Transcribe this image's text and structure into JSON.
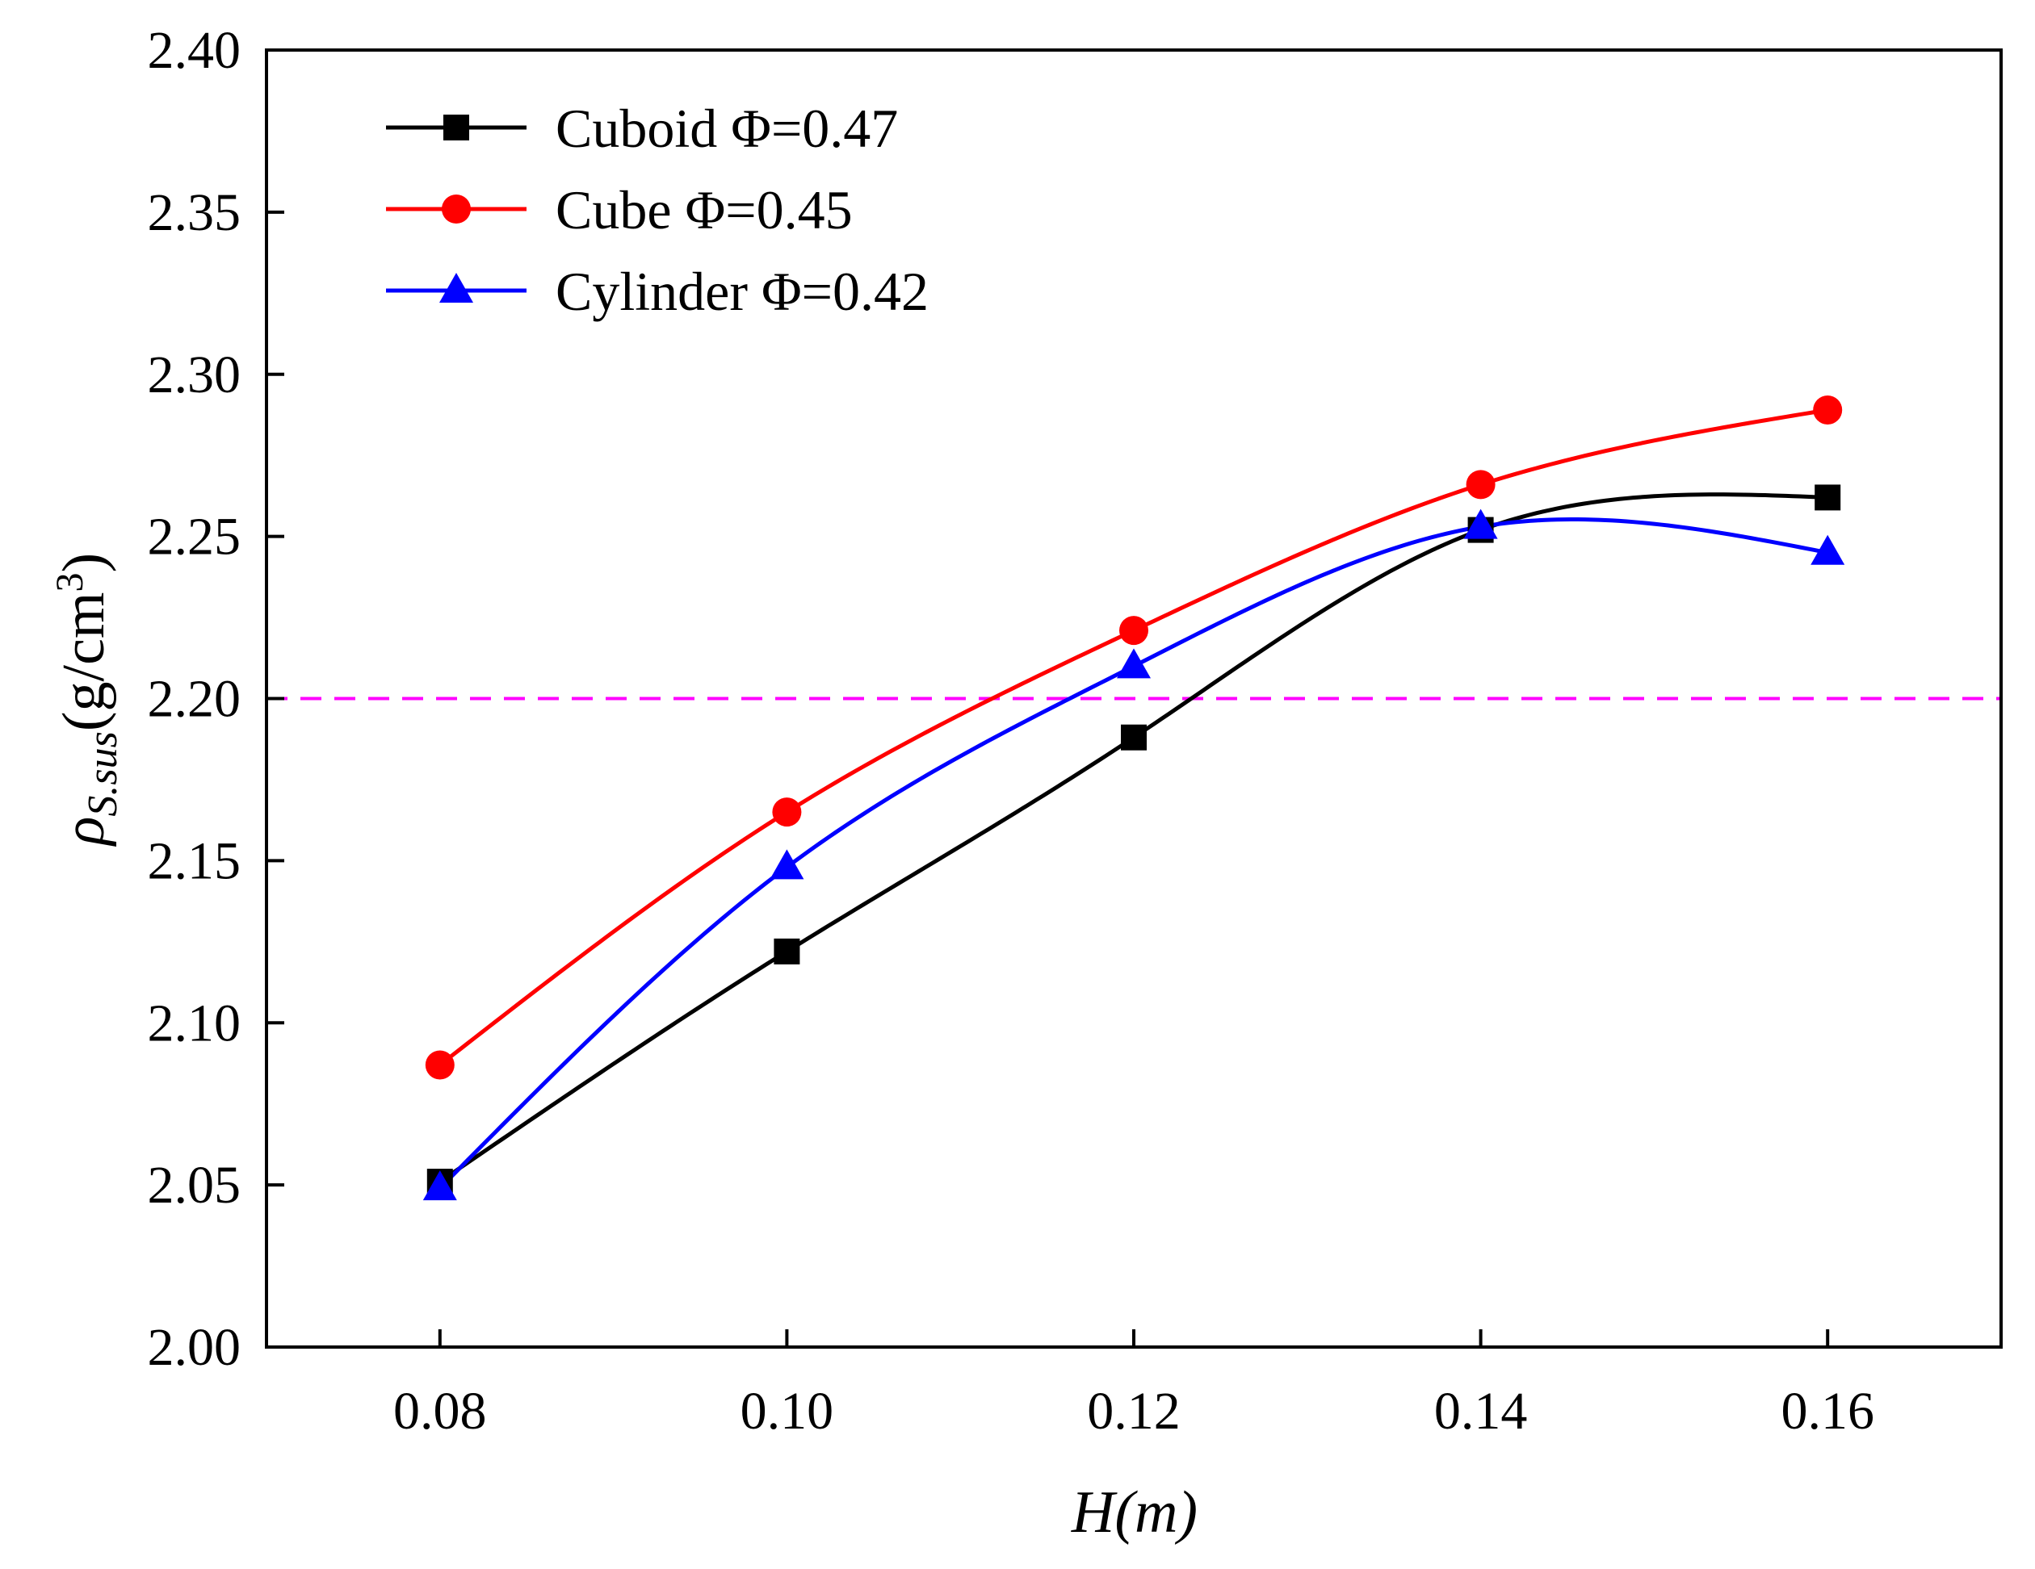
{
  "chart_data": {
    "type": "line",
    "xlabel": "H(m)",
    "ylabel": {
      "symbol": "ρ",
      "subscript": "S.sus",
      "unit_prefix": "(g/cm",
      "unit_superscript": "3",
      "unit_suffix": ")"
    },
    "xlim": [
      0.07,
      0.17
    ],
    "ylim": [
      2.0,
      2.4
    ],
    "x_ticks": [
      0.08,
      0.1,
      0.12,
      0.14,
      0.16
    ],
    "x_tick_labels": [
      "0.08",
      "0.10",
      "0.12",
      "0.14",
      "0.16"
    ],
    "y_ticks": [
      2.0,
      2.05,
      2.1,
      2.15,
      2.2,
      2.25,
      2.3,
      2.35,
      2.4
    ],
    "y_tick_labels": [
      "2.00",
      "2.05",
      "2.10",
      "2.15",
      "2.20",
      "2.25",
      "2.30",
      "2.35",
      "2.40"
    ],
    "grid": false,
    "legend_position": "top-left",
    "reference_line": {
      "y": 2.2,
      "style": "dashed",
      "color": "#ff00ff"
    },
    "x": [
      0.08,
      0.1,
      0.12,
      0.14,
      0.16
    ],
    "series": [
      {
        "name": "Cuboid Φ=0.47",
        "color": "#000000",
        "marker": "square",
        "values": [
          2.051,
          2.122,
          2.188,
          2.252,
          2.262
        ]
      },
      {
        "name": "Cube Φ=0.45",
        "color": "#ff0000",
        "marker": "circle",
        "values": [
          2.087,
          2.165,
          2.221,
          2.266,
          2.289
        ]
      },
      {
        "name": "Cylinder Φ=0.42",
        "color": "#0000ff",
        "marker": "triangle",
        "values": [
          2.049,
          2.148,
          2.21,
          2.253,
          2.245
        ]
      }
    ]
  }
}
